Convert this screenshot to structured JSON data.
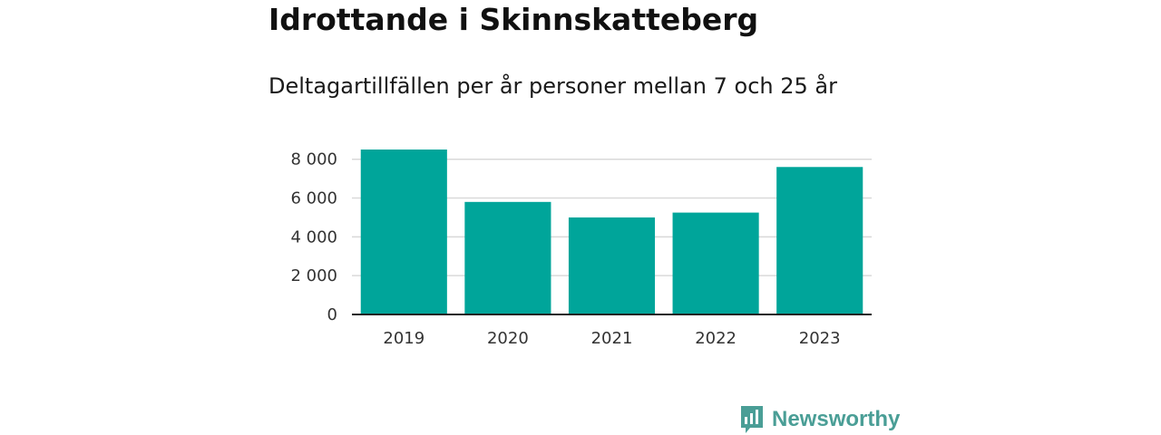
{
  "title": "Idrottande i Skinnskatteberg",
  "subtitle": "Deltagartillfällen per år personer mellan 7 och 25 år",
  "brand": {
    "name": "Newsworthy",
    "icon": "newsworthy-logo-icon",
    "color": "#4a9e96"
  },
  "colors": {
    "bar": "#00a59a",
    "grid": "#d9d9d9",
    "axis": "#222222"
  },
  "chart_data": {
    "type": "bar",
    "categories": [
      "2019",
      "2020",
      "2021",
      "2022",
      "2023"
    ],
    "values": [
      8500,
      5800,
      5000,
      5250,
      7600
    ],
    "title": "Idrottande i Skinnskatteberg",
    "subtitle": "Deltagartillfällen per år personer mellan 7 och 25 år",
    "xlabel": "",
    "ylabel": "",
    "ylim": [
      0,
      8500
    ],
    "yticks": [
      0,
      2000,
      4000,
      6000,
      8000
    ],
    "ytick_labels": [
      "0",
      "2 000",
      "4 000",
      "6 000",
      "8 000"
    ],
    "grid": true,
    "legend": "none"
  }
}
